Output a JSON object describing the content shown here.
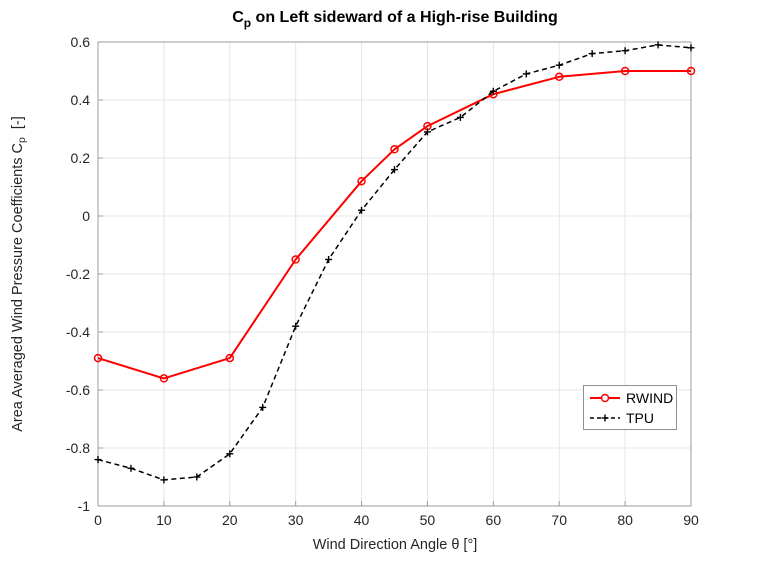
{
  "chart": {
    "title_main": "C",
    "title_sub": "p",
    "title_rest": " on Left sideward of a High-rise Building",
    "ylabel_main": "Area Averaged Wind Pressure Coefficients C",
    "ylabel_sub": "p",
    "ylabel_rest": " [-]"
  },
  "chart_data": {
    "type": "line",
    "title": "C_p on Left sideward of a High-rise Building",
    "xlabel": "Wind Direction Angle θ [°]",
    "ylabel": "Area Averaged Wind Pressure Coefficients C_p [-]",
    "xlim": [
      0,
      90
    ],
    "ylim": [
      -1,
      0.6
    ],
    "xticks": [
      0,
      10,
      20,
      30,
      40,
      50,
      60,
      70,
      80,
      90
    ],
    "xtick_labels": [
      "0",
      "10",
      "20",
      "30",
      "40",
      "50",
      "60",
      "70",
      "80",
      "90"
    ],
    "yticks": [
      -1,
      -0.8,
      -0.6,
      -0.4,
      -0.2,
      0,
      0.2,
      0.4,
      0.6
    ],
    "ytick_labels": [
      "-1",
      "-0.8",
      "-0.6",
      "-0.4",
      "-0.2",
      "0",
      "0.2",
      "0.4",
      "0.6"
    ],
    "grid": true,
    "grid_color": "#e5e5e5",
    "axis_color": "#9e9e9e",
    "label_color": "#262626",
    "legend_position": "right-center",
    "series": [
      {
        "name": "RWIND",
        "color": "#ff0000",
        "style": "solid",
        "marker": "circle",
        "line_width": 2,
        "x": [
          0,
          10,
          20,
          30,
          40,
          45,
          50,
          60,
          70,
          80,
          90
        ],
        "y": [
          -0.49,
          -0.56,
          -0.49,
          -0.15,
          0.12,
          0.23,
          0.31,
          0.42,
          0.48,
          0.5,
          0.5
        ]
      },
      {
        "name": "TPU",
        "color": "#000000",
        "style": "dashed",
        "marker": "plus",
        "line_width": 1.5,
        "x": [
          0,
          5,
          10,
          15,
          20,
          25,
          30,
          35,
          40,
          45,
          50,
          55,
          60,
          65,
          70,
          75,
          80,
          85,
          90
        ],
        "y": [
          -0.84,
          -0.87,
          -0.91,
          -0.9,
          -0.82,
          -0.66,
          -0.38,
          -0.15,
          0.02,
          0.16,
          0.29,
          0.34,
          0.43,
          0.49,
          0.52,
          0.56,
          0.57,
          0.59,
          0.58
        ]
      }
    ]
  }
}
